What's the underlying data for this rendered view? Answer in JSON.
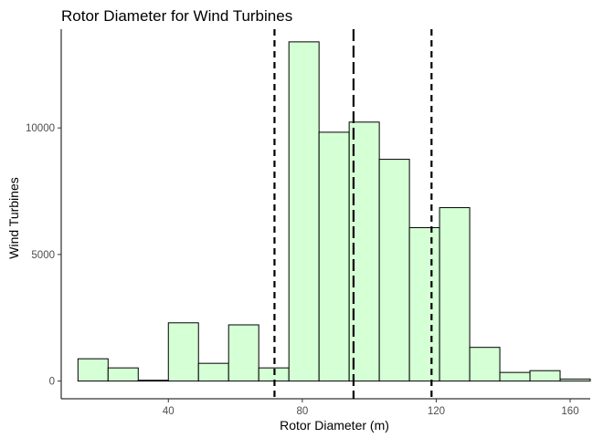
{
  "chart_data": {
    "type": "histogram",
    "title": "Rotor Diameter for Wind Turbines",
    "xlabel": "Rotor Diameter (m)",
    "ylabel": "Wind Turbines",
    "xlim": [
      8,
      166
    ],
    "ylim": [
      -700,
      13900
    ],
    "x_ticks": [
      40,
      80,
      120,
      160
    ],
    "y_ticks": [
      0,
      5000,
      10000
    ],
    "bins": [
      {
        "x0": 13,
        "x1": 22,
        "count": 880
      },
      {
        "x0": 22,
        "x1": 31,
        "count": 520
      },
      {
        "x0": 31,
        "x1": 40,
        "count": 30
      },
      {
        "x0": 40,
        "x1": 49,
        "count": 2300
      },
      {
        "x0": 49,
        "x1": 58,
        "count": 700
      },
      {
        "x0": 58,
        "x1": 67,
        "count": 2220
      },
      {
        "x0": 67,
        "x1": 76,
        "count": 520
      },
      {
        "x0": 76,
        "x1": 85,
        "count": 13400
      },
      {
        "x0": 85,
        "x1": 94,
        "count": 9830
      },
      {
        "x0": 94,
        "x1": 103,
        "count": 10230
      },
      {
        "x0": 103,
        "x1": 112,
        "count": 8760
      },
      {
        "x0": 112,
        "x1": 121,
        "count": 6060
      },
      {
        "x0": 121,
        "x1": 130,
        "count": 6850
      },
      {
        "x0": 130,
        "x1": 139,
        "count": 1330
      },
      {
        "x0": 139,
        "x1": 148,
        "count": 340
      },
      {
        "x0": 148,
        "x1": 157,
        "count": 410
      },
      {
        "x0": 157,
        "x1": 166,
        "count": 80
      }
    ],
    "reference_lines": [
      {
        "x": 71.7,
        "style": "short-dash"
      },
      {
        "x": 95.3,
        "style": "long-dash"
      },
      {
        "x": 118.6,
        "style": "short-dash"
      }
    ],
    "bar_fill": "#d5ffd5",
    "bar_stroke": "#000000",
    "grid": false,
    "legend": "none"
  }
}
